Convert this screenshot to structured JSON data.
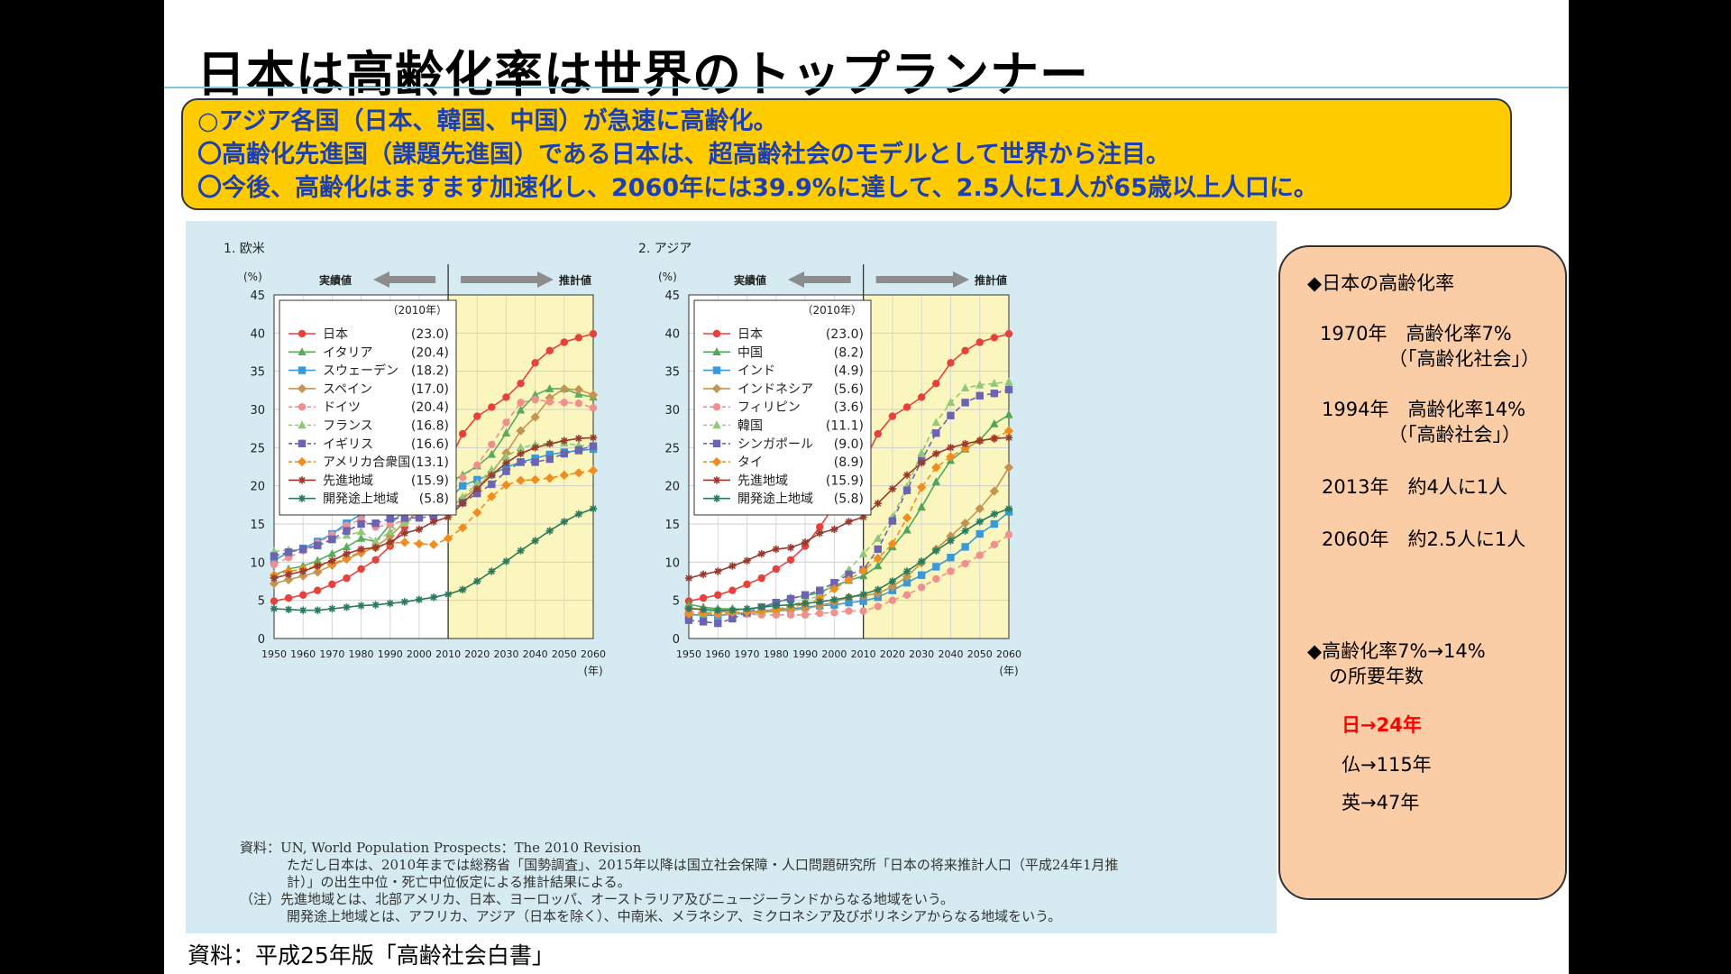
{
  "slide": {
    "title": "日本は高齢化率は世界のトップランナー",
    "summary": [
      "○アジア各国（日本、韓国、中国）が急速に高齢化。",
      "〇高齢化先進国（課題先進国）である日本は、超高齢社会のモデルとして世界から注目。",
      "〇今後、高齢化はますます加速化し、2060年には39.9%に達して、2.5人に1人が65歳以上人口に。"
    ],
    "source": "資料：平成25年版「高齢社会白書」"
  },
  "side_panel": {
    "heading1": "◆日本の高齢化率",
    "line1a": "1970年　高齢化率7%",
    "line1b": "（「高齢化社会」）",
    "line2a": "1994年　高齢化率14%",
    "line2b": "（「高齢社会」）",
    "line3": "2013年　約4人に1人",
    "line4": "2060年　約2.5人に1人",
    "heading2a": "◆高齢化率7%→14%",
    "heading2b": "の所要年数",
    "japan": "日→24年",
    "france": "仏→115年",
    "uk": "英→47年",
    "highlight_color": "#ff0000"
  },
  "notes": {
    "l1": "資料：UN, World Population Prospects：The 2010 Revision",
    "l2": "ただし日本は、2010年までは総務省「国勢調査」、2015年以降は国立社会保障・人口問題研究所「日本の将来推計人口（平成24年1月推",
    "l3": "計）」の出生中位・死亡中位仮定による推計結果による。",
    "l4": "（注）先進地域とは、北部アメリカ、日本、ヨーロッパ、オーストラリア及びニュージーランドからなる地域をいう。",
    "l5": "開発途上地域とは、アフリカ、アジア（日本を除く）、中南米、メラネシア、ミクロネシア及びポリネシアからなる地域をいう。"
  },
  "chart_common": {
    "actual_label": "実績値",
    "projected_label": "推計値",
    "ylabel": "(%)",
    "xunit": "(年)",
    "legend_header": "（2010年）",
    "projection_from": 2010,
    "projection_fill": "#fbf6bd",
    "y_ticks": [
      "0",
      "5",
      "10",
      "15",
      "20",
      "25",
      "30",
      "35",
      "40",
      "45"
    ],
    "x_ticks": [
      "1950",
      "1960",
      "1970",
      "1980",
      "1990",
      "2000",
      "2010",
      "2020",
      "2030",
      "2040",
      "2050",
      "2060"
    ]
  },
  "chart_data": [
    {
      "type": "line",
      "title": "1. 欧米",
      "xlabel": "(年)",
      "ylabel": "(%)",
      "xlim": [
        1950,
        2060
      ],
      "ylim": [
        0,
        45
      ],
      "x": [
        1950,
        1955,
        1960,
        1965,
        1970,
        1975,
        1980,
        1985,
        1990,
        1995,
        2000,
        2005,
        2010,
        2015,
        2020,
        2025,
        2030,
        2035,
        2040,
        2045,
        2050,
        2055,
        2060
      ],
      "grid": true,
      "legend": "top-left",
      "series": [
        {
          "name": "日本",
          "label": "(23.0)",
          "color": "#e8403a",
          "marker": "circle",
          "dash": "",
          "values": [
            4.9,
            5.3,
            5.7,
            6.3,
            7.1,
            7.9,
            9.1,
            10.3,
            12.1,
            14.6,
            17.4,
            20.2,
            23.0,
            26.8,
            29.1,
            30.3,
            31.6,
            33.4,
            36.1,
            37.7,
            38.8,
            39.4,
            39.9
          ]
        },
        {
          "name": "イタリア",
          "label": "(20.4)",
          "color": "#5aab5a",
          "marker": "triangle",
          "dash": "",
          "values": [
            8.3,
            9.1,
            9.5,
            10.2,
            11.1,
            12.0,
            13.1,
            12.7,
            14.9,
            16.8,
            18.3,
            19.8,
            20.4,
            21.4,
            22.6,
            24.1,
            26.9,
            29.9,
            31.9,
            32.7,
            32.7,
            32.0,
            31.6
          ]
        },
        {
          "name": "スウェーデン",
          "label": "(18.2)",
          "color": "#3a9ad8",
          "marker": "square",
          "dash": "",
          "values": [
            10.2,
            11.3,
            11.8,
            12.7,
            13.7,
            15.1,
            16.3,
            17.4,
            17.8,
            17.5,
            17.3,
            17.3,
            18.2,
            20.0,
            20.8,
            21.5,
            22.4,
            23.1,
            23.6,
            24.1,
            24.4,
            24.6,
            24.8
          ]
        },
        {
          "name": "スペイン",
          "label": "(17.0)",
          "color": "#c59450",
          "marker": "diamond",
          "dash": "",
          "values": [
            7.2,
            7.7,
            8.2,
            8.7,
            9.6,
            10.4,
            11.2,
            12.0,
            13.4,
            15.2,
            16.7,
            16.7,
            17.0,
            18.3,
            19.8,
            21.7,
            24.3,
            27.2,
            29.0,
            31.5,
            32.7,
            32.6,
            31.9
          ]
        },
        {
          "name": "ドイツ",
          "label": "(20.4)",
          "color": "#f0908e",
          "marker": "circle",
          "dash": "6,4",
          "values": [
            9.7,
            10.6,
            11.5,
            12.5,
            13.6,
            14.8,
            15.6,
            14.6,
            14.9,
            15.5,
            16.4,
            18.8,
            20.4,
            21.1,
            22.7,
            25.4,
            28.3,
            30.9,
            31.3,
            31.0,
            30.9,
            30.8,
            30.2
          ]
        },
        {
          "name": "フランス",
          "label": "(16.8)",
          "color": "#8fc87a",
          "marker": "triangle",
          "dash": "6,4",
          "values": [
            11.4,
            11.6,
            11.6,
            12.1,
            12.9,
            13.5,
            14.0,
            12.7,
            14.0,
            15.1,
            16.1,
            16.5,
            16.8,
            18.5,
            20.3,
            22.1,
            23.8,
            25.0,
            25.4,
            25.6,
            25.6,
            25.3,
            25.2
          ]
        },
        {
          "name": "イギリス",
          "label": "(16.6)",
          "color": "#6a64b2",
          "marker": "square",
          "dash": "6,4",
          "values": [
            10.8,
            11.3,
            11.7,
            12.2,
            13.0,
            14.1,
            15.0,
            15.1,
            15.7,
            15.8,
            15.8,
            16.0,
            16.6,
            17.8,
            19.0,
            20.2,
            21.9,
            23.1,
            23.1,
            23.5,
            24.2,
            24.7,
            25.2
          ]
        },
        {
          "name": "アメリカ合衆国",
          "label": "(13.1)",
          "color": "#f08d1e",
          "marker": "diamond",
          "dash": "6,4",
          "values": [
            8.3,
            8.8,
            9.1,
            9.5,
            9.8,
            10.5,
            11.4,
            11.9,
            12.5,
            12.6,
            12.4,
            12.3,
            13.1,
            14.5,
            16.5,
            18.6,
            20.1,
            20.7,
            20.8,
            21.0,
            21.4,
            21.7,
            22.0
          ]
        },
        {
          "name": "先進地域",
          "label": "(15.9)",
          "color": "#9a3a2e",
          "marker": "star",
          "dash": "",
          "values": [
            7.9,
            8.4,
            8.8,
            9.5,
            10.2,
            11.1,
            11.7,
            11.9,
            12.6,
            13.8,
            14.3,
            15.3,
            15.9,
            17.7,
            19.6,
            21.4,
            23.0,
            24.2,
            25.0,
            25.5,
            25.9,
            26.2,
            26.3
          ]
        },
        {
          "name": "開発途上地域",
          "label": "(5.8)",
          "color": "#2a7a5c",
          "marker": "star",
          "dash": "",
          "values": [
            3.9,
            3.8,
            3.7,
            3.7,
            3.9,
            4.1,
            4.3,
            4.4,
            4.6,
            4.8,
            5.1,
            5.4,
            5.8,
            6.4,
            7.5,
            8.8,
            10.1,
            11.5,
            12.8,
            14.1,
            15.3,
            16.3,
            17.0
          ]
        }
      ]
    },
    {
      "type": "line",
      "title": "2. アジア",
      "xlabel": "(年)",
      "ylabel": "(%)",
      "xlim": [
        1950,
        2060
      ],
      "ylim": [
        0,
        45
      ],
      "x": [
        1950,
        1955,
        1960,
        1965,
        1970,
        1975,
        1980,
        1985,
        1990,
        1995,
        2000,
        2005,
        2010,
        2015,
        2020,
        2025,
        2030,
        2035,
        2040,
        2045,
        2050,
        2055,
        2060
      ],
      "grid": true,
      "legend": "top-left",
      "series": [
        {
          "name": "日本",
          "label": "(23.0)",
          "color": "#e8403a",
          "marker": "circle",
          "dash": "",
          "values": [
            4.9,
            5.3,
            5.7,
            6.3,
            7.1,
            7.9,
            9.1,
            10.3,
            12.1,
            14.6,
            17.4,
            20.2,
            23.0,
            26.8,
            29.1,
            30.3,
            31.6,
            33.4,
            36.1,
            37.7,
            38.8,
            39.4,
            39.9
          ]
        },
        {
          "name": "中国",
          "label": "(8.2)",
          "color": "#4fa65a",
          "marker": "triangle",
          "dash": "",
          "values": [
            4.5,
            4.1,
            3.9,
            3.9,
            3.8,
            4.1,
            4.7,
            5.3,
            5.6,
            6.0,
            6.9,
            7.6,
            8.2,
            9.5,
            12.0,
            14.2,
            17.2,
            20.5,
            23.3,
            24.8,
            26.0,
            28.1,
            29.3
          ]
        },
        {
          "name": "インド",
          "label": "(4.9)",
          "color": "#3a9ad8",
          "marker": "square",
          "dash": "",
          "values": [
            3.1,
            3.1,
            3.0,
            3.2,
            3.3,
            3.6,
            3.8,
            3.9,
            4.1,
            4.3,
            4.4,
            4.7,
            4.9,
            5.4,
            6.3,
            7.3,
            8.3,
            9.4,
            10.6,
            12.0,
            13.7,
            15.0,
            16.6
          ]
        },
        {
          "name": "インドネシア",
          "label": "(5.6)",
          "color": "#c59450",
          "marker": "diamond",
          "dash": "",
          "values": [
            4.0,
            3.8,
            3.6,
            3.4,
            3.3,
            3.4,
            3.6,
            3.7,
            3.9,
            4.3,
            4.8,
            5.4,
            5.6,
            5.9,
            6.8,
            8.1,
            9.9,
            11.7,
            13.4,
            15.1,
            17.0,
            19.3,
            22.4
          ]
        },
        {
          "name": "フィリピン",
          "label": "(3.6)",
          "color": "#f0908e",
          "marker": "circle",
          "dash": "6,4",
          "values": [
            3.6,
            3.3,
            3.2,
            3.2,
            3.2,
            3.1,
            3.1,
            3.1,
            3.1,
            3.3,
            3.4,
            3.6,
            3.6,
            4.2,
            5.0,
            5.7,
            6.7,
            7.8,
            8.8,
            9.8,
            10.9,
            12.3,
            13.6
          ]
        },
        {
          "name": "韓国",
          "label": "(11.1)",
          "color": "#8fc87a",
          "marker": "triangle",
          "dash": "6,4",
          "values": [
            2.9,
            3.3,
            3.7,
            3.3,
            3.3,
            3.5,
            3.8,
            4.3,
            5.0,
            5.6,
            7.2,
            9.0,
            11.1,
            13.1,
            15.9,
            19.9,
            24.3,
            28.3,
            30.9,
            32.8,
            33.2,
            33.4,
            33.6
          ]
        },
        {
          "name": "シンガポール",
          "label": "(9.0)",
          "color": "#6a64b2",
          "marker": "square",
          "dash": "6,4",
          "values": [
            2.4,
            2.2,
            2.0,
            2.6,
            3.4,
            4.1,
            4.7,
            5.2,
            5.7,
            6.3,
            7.3,
            8.4,
            9.0,
            11.7,
            15.4,
            19.4,
            23.3,
            26.9,
            29.2,
            30.9,
            31.8,
            32.1,
            32.6
          ]
        },
        {
          "name": "タイ",
          "label": "(8.9)",
          "color": "#f08d1e",
          "marker": "diamond",
          "dash": "6,4",
          "values": [
            3.2,
            3.3,
            3.3,
            3.4,
            3.5,
            3.6,
            3.8,
            4.1,
            4.5,
            5.2,
            6.5,
            7.7,
            8.9,
            10.5,
            12.4,
            15.8,
            19.8,
            22.4,
            23.8,
            24.9,
            25.9,
            26.2,
            27.2
          ]
        },
        {
          "name": "先進地域",
          "label": "(15.9)",
          "color": "#9a3a2e",
          "marker": "star",
          "dash": "",
          "values": [
            7.9,
            8.4,
            8.8,
            9.5,
            10.2,
            11.1,
            11.7,
            11.9,
            12.6,
            13.8,
            14.3,
            15.3,
            15.9,
            17.7,
            19.6,
            21.4,
            23.0,
            24.2,
            25.0,
            25.5,
            25.9,
            26.2,
            26.3
          ]
        },
        {
          "name": "開発途上地域",
          "label": "(5.8)",
          "color": "#2a7a5c",
          "marker": "star",
          "dash": "",
          "values": [
            3.9,
            3.8,
            3.7,
            3.7,
            3.9,
            4.1,
            4.3,
            4.4,
            4.6,
            4.8,
            5.1,
            5.4,
            5.8,
            6.4,
            7.5,
            8.8,
            10.1,
            11.5,
            12.8,
            14.1,
            15.3,
            16.3,
            17.0
          ]
        }
      ]
    }
  ]
}
